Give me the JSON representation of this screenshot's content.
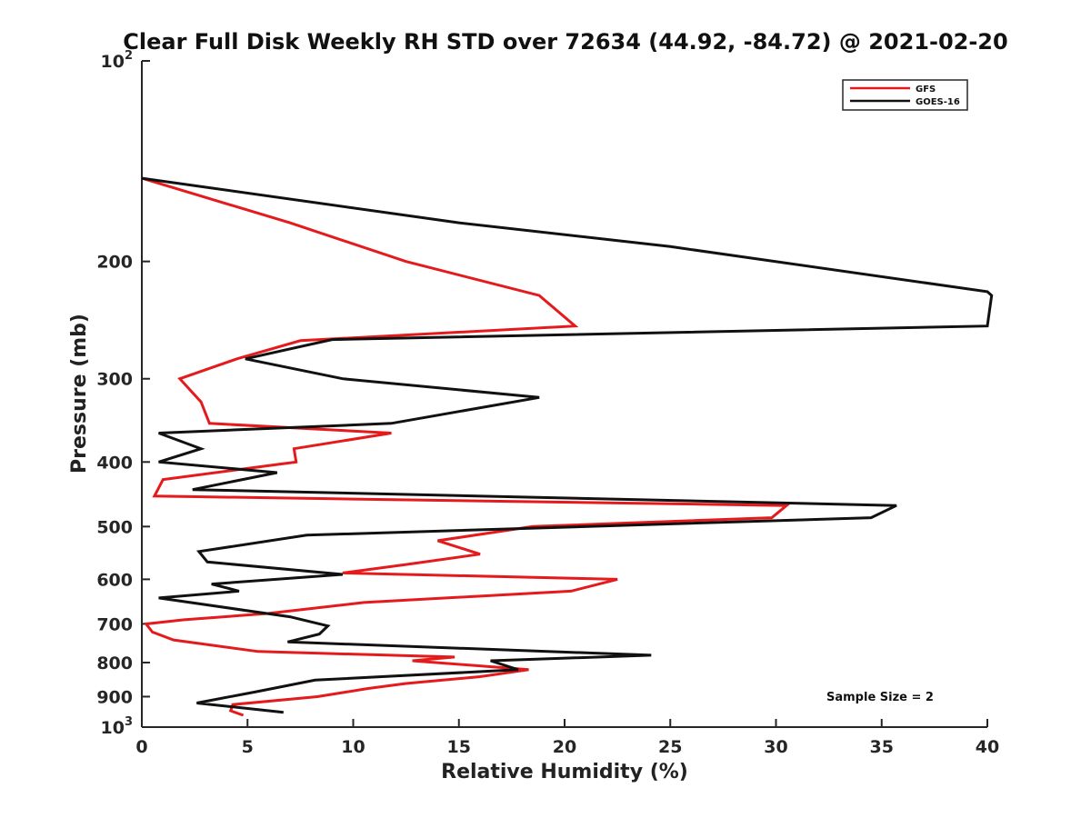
{
  "chart_data": {
    "type": "line",
    "title": "Clear Full Disk Weekly RH STD over 72634 (44.92, -84.72) @ 2021-02-20",
    "xlabel": "Relative Humidity (%)",
    "ylabel": "Pressure (mb)",
    "xlim": [
      0,
      40
    ],
    "ylim": [
      100,
      1000
    ],
    "yscale": "log",
    "y_reversed": true,
    "grid": false,
    "legend_position": "top-right",
    "x_ticks": [
      0,
      5,
      10,
      15,
      20,
      25,
      30,
      35,
      40
    ],
    "x_tick_labels": [
      "0",
      "5",
      "10",
      "15",
      "20",
      "25",
      "30",
      "35",
      "40"
    ],
    "y_ticks": [
      100,
      200,
      300,
      400,
      500,
      600,
      700,
      800,
      900,
      1000
    ],
    "y_tick_labels": [
      {
        "base": "10",
        "exp": "2"
      },
      {
        "text": "200"
      },
      {
        "text": "300"
      },
      {
        "text": "400"
      },
      {
        "text": "500"
      },
      {
        "text": "600"
      },
      {
        "text": "700"
      },
      {
        "text": "800"
      },
      {
        "text": "900"
      },
      {
        "base": "10",
        "exp": "3"
      }
    ],
    "annotation": "Sample Size = 2",
    "series": [
      {
        "name": "GFS",
        "color": "#e41a1c",
        "points": [
          [
            0,
            150
          ],
          [
            7.0,
            175
          ],
          [
            12.5,
            200
          ],
          [
            18.8,
            225
          ],
          [
            20.5,
            250
          ],
          [
            7.5,
            263
          ],
          [
            4.5,
            280
          ],
          [
            1.8,
            300
          ],
          [
            2.8,
            325
          ],
          [
            3.2,
            350
          ],
          [
            11.8,
            362
          ],
          [
            7.2,
            382
          ],
          [
            7.3,
            400
          ],
          [
            1.0,
            425
          ],
          [
            0.6,
            450
          ],
          [
            30.5,
            465
          ],
          [
            29.8,
            485
          ],
          [
            18.5,
            500
          ],
          [
            14.0,
            525
          ],
          [
            16.0,
            550
          ],
          [
            12.5,
            570
          ],
          [
            9.5,
            587
          ],
          [
            22.5,
            600
          ],
          [
            20.3,
            625
          ],
          [
            10.5,
            650
          ],
          [
            6.0,
            675
          ],
          [
            2.0,
            690
          ],
          [
            0.2,
            700
          ],
          [
            0.5,
            720
          ],
          [
            1.5,
            740
          ],
          [
            5.5,
            770
          ],
          [
            14.8,
            785
          ],
          [
            12.8,
            795
          ],
          [
            18.3,
            820
          ],
          [
            16.0,
            840
          ],
          [
            12.5,
            860
          ],
          [
            10.7,
            875
          ],
          [
            8.3,
            900
          ],
          [
            4.3,
            925
          ],
          [
            4.2,
            945
          ],
          [
            4.8,
            960
          ]
        ]
      },
      {
        "name": "GOES-16",
        "color": "#111111",
        "points": [
          [
            0,
            150
          ],
          [
            15.0,
            175
          ],
          [
            25.0,
            190
          ],
          [
            40.0,
            222
          ],
          [
            40.2,
            225
          ],
          [
            40.0,
            250
          ],
          [
            9.0,
            262
          ],
          [
            4.9,
            280
          ],
          [
            9.5,
            300
          ],
          [
            18.8,
            320
          ],
          [
            11.8,
            350
          ],
          [
            0.8,
            362
          ],
          [
            2.8,
            382
          ],
          [
            0.8,
            400
          ],
          [
            6.4,
            415
          ],
          [
            2.4,
            440
          ],
          [
            35.7,
            465
          ],
          [
            34.5,
            485
          ],
          [
            7.8,
            515
          ],
          [
            2.7,
            545
          ],
          [
            3.1,
            565
          ],
          [
            9.5,
            590
          ],
          [
            3.3,
            610
          ],
          [
            4.6,
            625
          ],
          [
            0.8,
            640
          ],
          [
            7.0,
            683
          ],
          [
            8.8,
            705
          ],
          [
            8.4,
            725
          ],
          [
            6.9,
            745
          ],
          [
            24.1,
            780
          ],
          [
            16.5,
            795
          ],
          [
            17.8,
            820
          ],
          [
            8.2,
            850
          ],
          [
            5.4,
            885
          ],
          [
            2.6,
            920
          ],
          [
            6.7,
            950
          ]
        ]
      }
    ]
  }
}
